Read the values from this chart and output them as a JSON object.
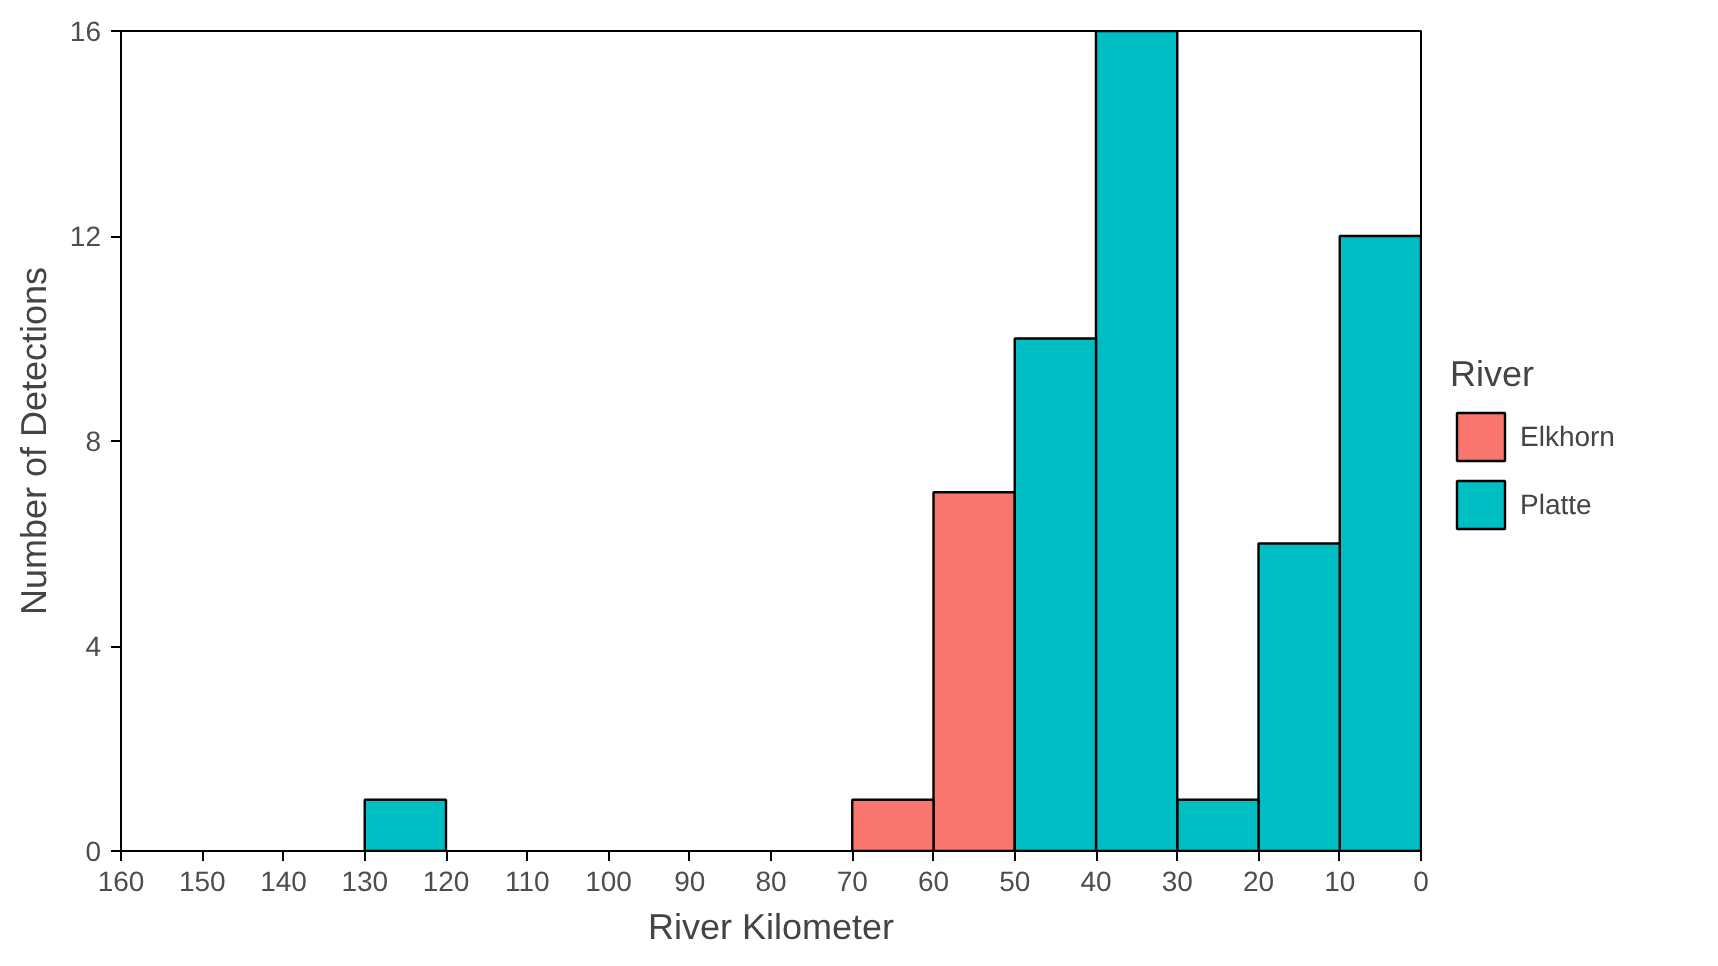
{
  "chart_data": {
    "type": "histogram",
    "xlabel": "River Kilometer",
    "ylabel": "Number of Detections",
    "legend_title": "River",
    "bins": [
      0,
      10,
      20,
      30,
      40,
      50,
      60,
      70,
      80,
      90,
      100,
      110,
      120,
      130,
      140,
      150,
      160
    ],
    "series": [
      {
        "name": "Elkhorn",
        "color": "#f8766d",
        "values": [
          0,
          0,
          0,
          0,
          0,
          7,
          1,
          0,
          0,
          0,
          0,
          0,
          0,
          0,
          0,
          0
        ]
      },
      {
        "name": "Platte",
        "color": "#00bfc4",
        "values": [
          12,
          6,
          1,
          16,
          10,
          0,
          0,
          0,
          0,
          0,
          0,
          0,
          1,
          0,
          0,
          0
        ]
      }
    ],
    "xlim": [
      160,
      0
    ],
    "xticks": [
      160,
      150,
      140,
      130,
      120,
      110,
      100,
      90,
      80,
      70,
      60,
      50,
      40,
      30,
      20,
      10,
      0
    ],
    "ylim": [
      0,
      16
    ],
    "yticks": [
      0,
      4,
      8,
      12,
      16
    ],
    "grid": false,
    "legend": "right"
  }
}
